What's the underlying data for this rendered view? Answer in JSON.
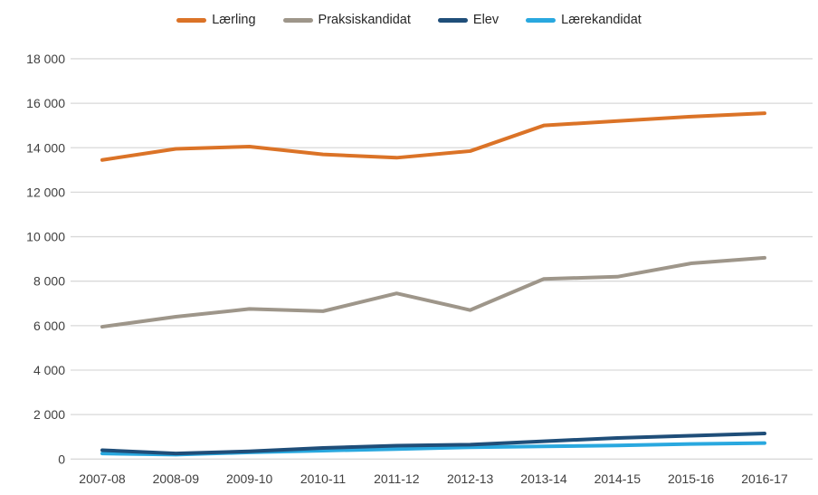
{
  "chart_data": {
    "type": "line",
    "title": "",
    "categories": [
      "2007-08",
      "2008-09",
      "2009-10",
      "2010-11",
      "2011-12",
      "2012-13",
      "2013-14",
      "2014-15",
      "2015-16",
      "2016-17"
    ],
    "series": [
      {
        "name": "Lærling",
        "color": "#DB7327",
        "values": [
          13450,
          13950,
          14050,
          13700,
          13550,
          13850,
          15000,
          15200,
          15400,
          15550
        ]
      },
      {
        "name": "Praksiskandidat",
        "color": "#9E968A",
        "values": [
          5950,
          6400,
          6750,
          6650,
          7450,
          6700,
          8100,
          8200,
          8800,
          9050
        ]
      },
      {
        "name": "Elev",
        "color": "#1F4E79",
        "values": [
          400,
          250,
          350,
          500,
          600,
          650,
          800,
          950,
          1050,
          1150
        ]
      },
      {
        "name": "Lærekandidat",
        "color": "#29A8DF",
        "values": [
          250,
          200,
          300,
          380,
          450,
          530,
          570,
          610,
          680,
          720
        ]
      }
    ],
    "xlabel": "",
    "ylabel": "",
    "ylim": [
      0,
      18000
    ],
    "ytick_step": 2000,
    "ytick_labels": [
      "0",
      "2 000",
      "4 000",
      "6 000",
      "8 000",
      "10 000",
      "12 000",
      "14 000",
      "16 000",
      "18 000"
    ],
    "legend_position": "top",
    "grid": "horizontal",
    "gridline_color": "#D9D9D9",
    "axis_label_color": "#404040",
    "background": "#FFFFFF",
    "line_width": 4
  }
}
